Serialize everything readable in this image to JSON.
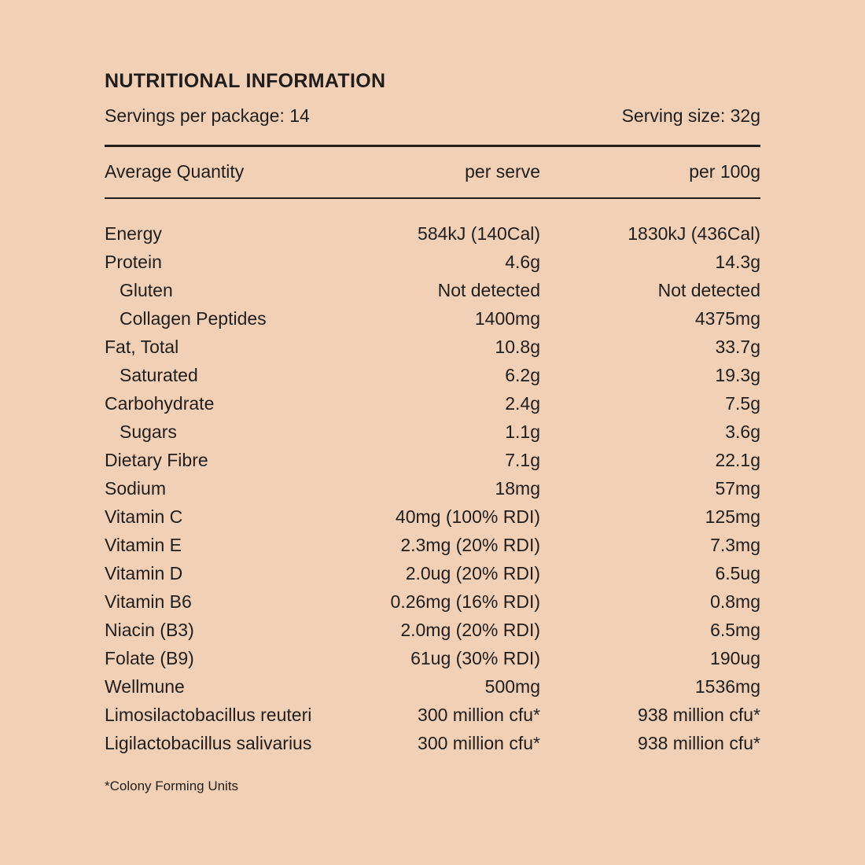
{
  "colors": {
    "background": "#f2d0b5",
    "text": "#211d1a",
    "rule": "#211d1a"
  },
  "panel": {
    "title": "NUTRITIONAL INFORMATION",
    "servings_per_package": "Servings per package: 14",
    "serving_size": "Serving size: 32g",
    "columns": {
      "label": "Average Quantity",
      "per_serve": "per serve",
      "per_100g": "per 100g"
    },
    "rows": [
      {
        "label": "Energy",
        "indent": false,
        "per_serve": "584kJ (140Cal)",
        "per_100g": "1830kJ (436Cal)"
      },
      {
        "label": "Protein",
        "indent": false,
        "per_serve": "4.6g",
        "per_100g": "14.3g"
      },
      {
        "label": "Gluten",
        "indent": true,
        "per_serve": "Not detected",
        "per_100g": "Not detected"
      },
      {
        "label": "Collagen Peptides",
        "indent": true,
        "per_serve": "1400mg",
        "per_100g": "4375mg"
      },
      {
        "label": "Fat, Total",
        "indent": false,
        "per_serve": "10.8g",
        "per_100g": "33.7g"
      },
      {
        "label": "Saturated",
        "indent": true,
        "per_serve": "6.2g",
        "per_100g": "19.3g"
      },
      {
        "label": "Carbohydrate",
        "indent": false,
        "per_serve": "2.4g",
        "per_100g": "7.5g"
      },
      {
        "label": "Sugars",
        "indent": true,
        "per_serve": "1.1g",
        "per_100g": "3.6g"
      },
      {
        "label": "Dietary Fibre",
        "indent": false,
        "per_serve": "7.1g",
        "per_100g": "22.1g"
      },
      {
        "label": "Sodium",
        "indent": false,
        "per_serve": "18mg",
        "per_100g": "57mg"
      },
      {
        "label": "Vitamin C",
        "indent": false,
        "per_serve": "40mg (100% RDI)",
        "per_100g": "125mg"
      },
      {
        "label": "Vitamin E",
        "indent": false,
        "per_serve": "2.3mg (20% RDI)",
        "per_100g": "7.3mg"
      },
      {
        "label": "Vitamin D",
        "indent": false,
        "per_serve": "2.0ug (20% RDI)",
        "per_100g": "6.5ug"
      },
      {
        "label": "Vitamin B6",
        "indent": false,
        "per_serve": "0.26mg (16% RDI)",
        "per_100g": "0.8mg"
      },
      {
        "label": "Niacin (B3)",
        "indent": false,
        "per_serve": "2.0mg (20% RDI)",
        "per_100g": "6.5mg"
      },
      {
        "label": "Folate (B9)",
        "indent": false,
        "per_serve": "61ug (30% RDI)",
        "per_100g": "190ug"
      },
      {
        "label": "Wellmune",
        "indent": false,
        "per_serve": "500mg",
        "per_100g": "1536mg"
      },
      {
        "label": "Limosilactobacillus reuteri",
        "indent": false,
        "per_serve": "300 million cfu*",
        "per_100g": "938 million cfu*"
      },
      {
        "label": "Ligilactobacillus salivarius",
        "indent": false,
        "per_serve": "300 million cfu*",
        "per_100g": "938 million cfu*"
      }
    ],
    "footnote": "*Colony Forming Units"
  }
}
